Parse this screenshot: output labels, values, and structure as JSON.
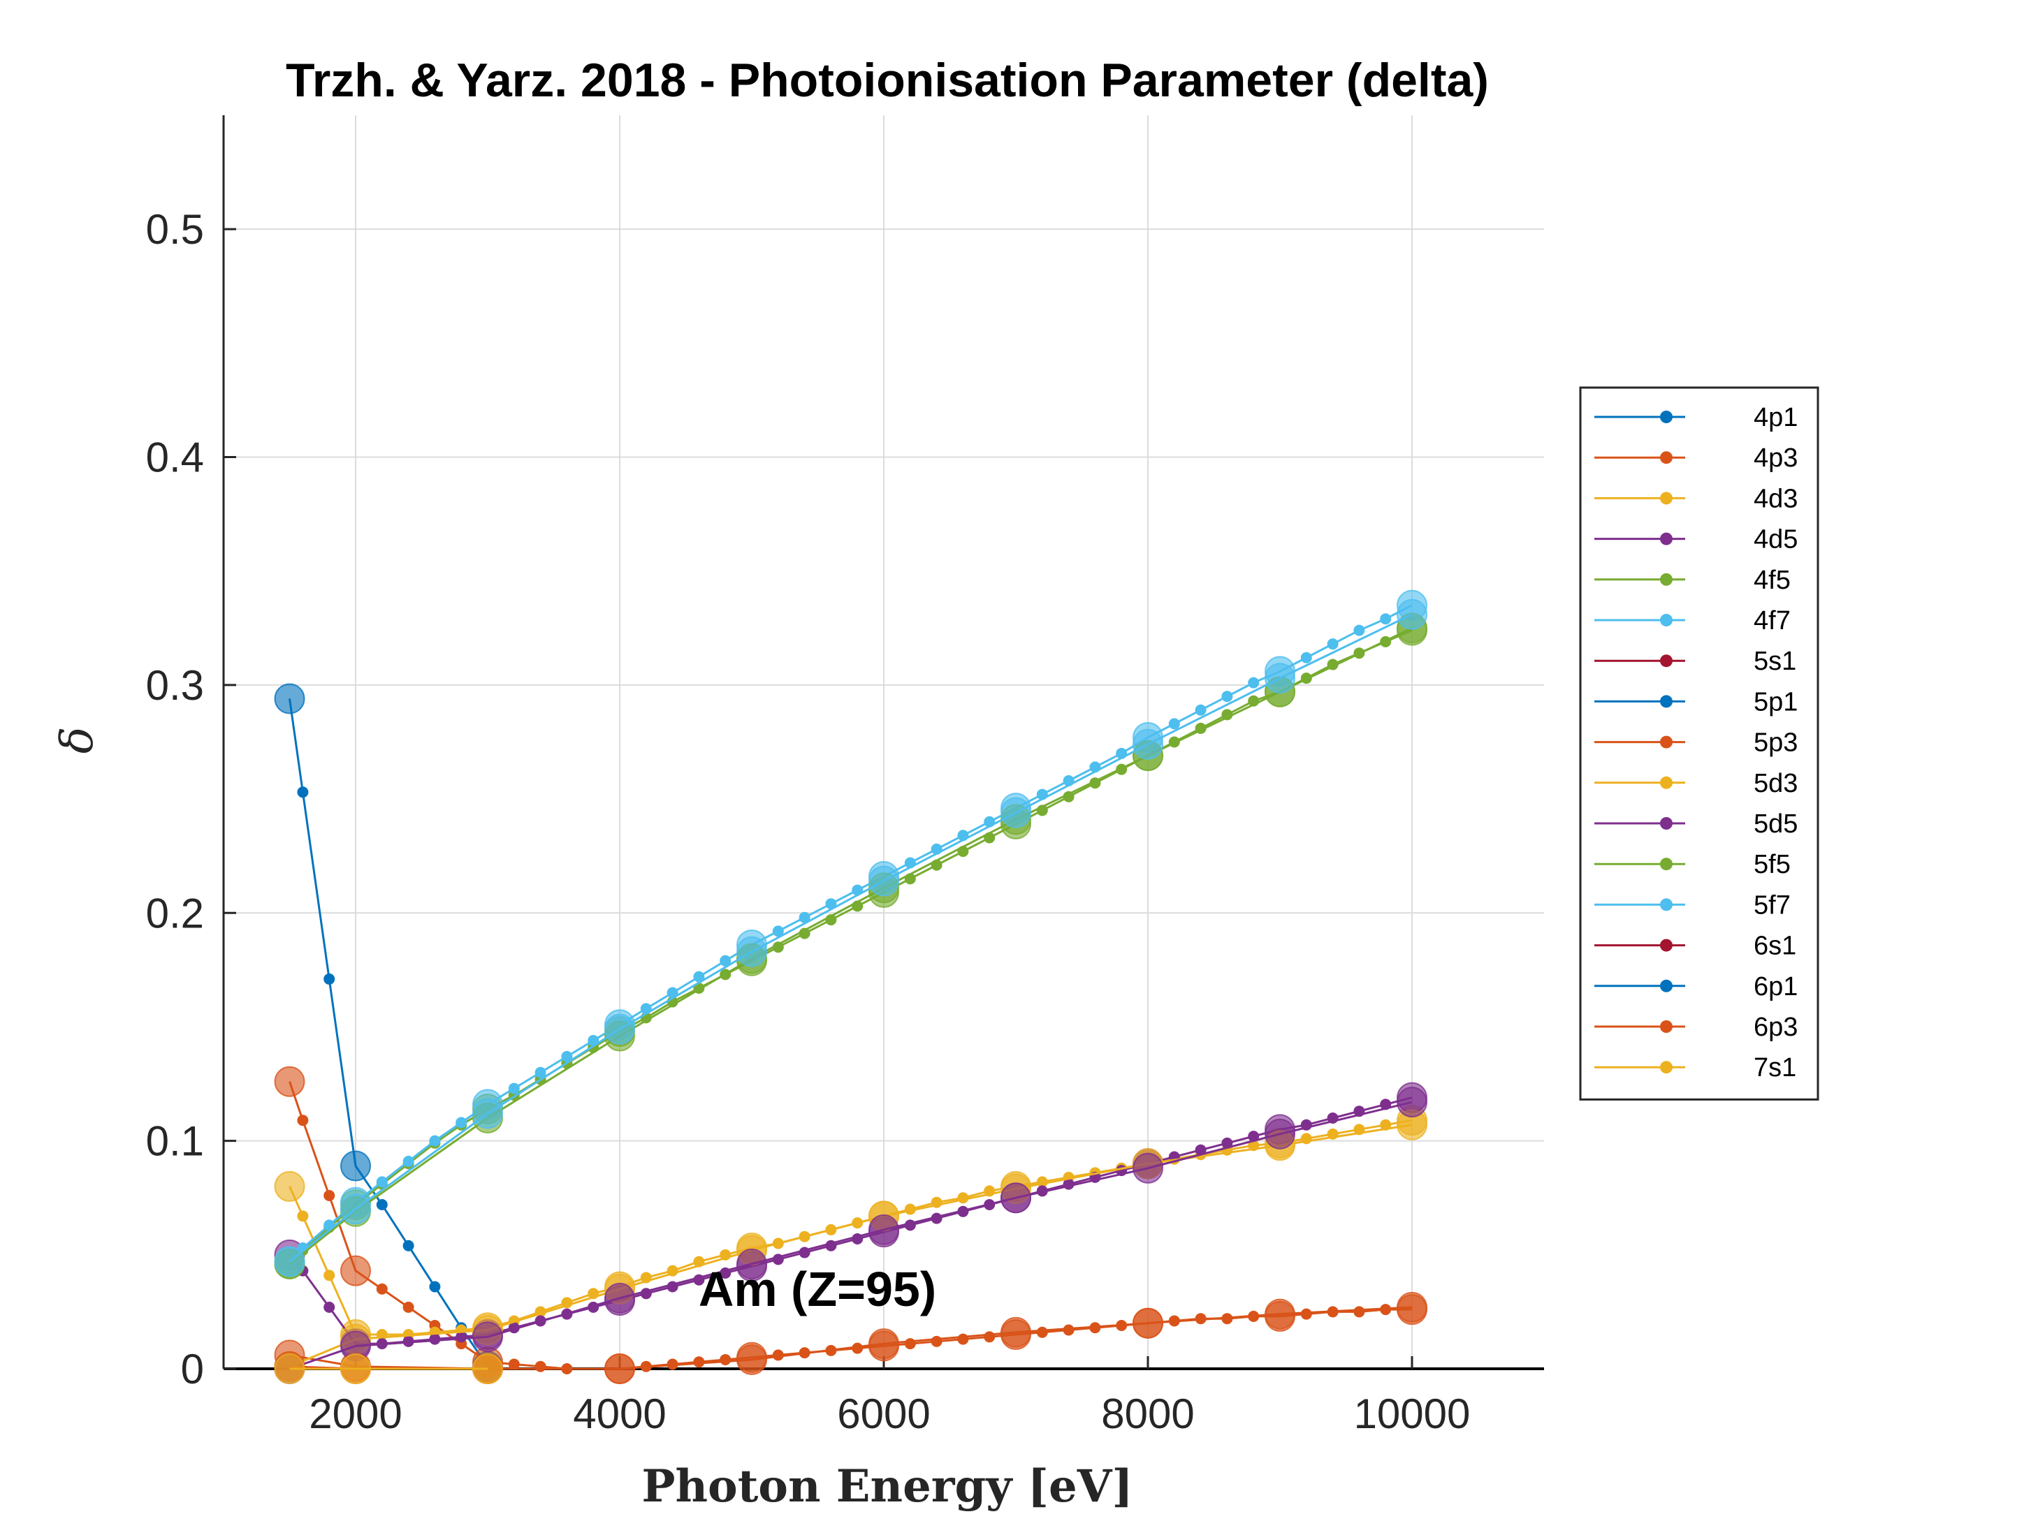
{
  "chart_data": {
    "type": "line",
    "title": "Trzh. & Yarz. 2018 - Photoionisation Parameter (delta)",
    "xlabel": "Photon Energy [eV]",
    "ylabel": "δ",
    "xlim": [
      1000,
      11000
    ],
    "ylim": [
      0,
      0.55
    ],
    "xticks": [
      2000,
      4000,
      6000,
      8000,
      10000
    ],
    "xtick_labels": [
      "2000",
      "4000",
      "6000",
      "8000",
      "10000"
    ],
    "yticks": [
      0,
      0.1,
      0.2,
      0.3,
      0.4,
      0.5
    ],
    "ytick_labels": [
      "0",
      "0.1",
      "0.2",
      "0.3",
      "0.4",
      "0.5"
    ],
    "grid": true,
    "legend_position": "outside-right",
    "annotation": "Am (Z=95)",
    "series": [
      {
        "name": "4p1",
        "color": "#0072BD",
        "x": [
          1500,
          1600,
          1800,
          2000,
          2200,
          2400,
          2600,
          2800,
          3000
        ],
        "y": [
          0.294,
          0.253,
          0.171,
          0.089,
          0.072,
          0.054,
          0.036,
          0.018,
          0.001
        ]
      },
      {
        "name": "4p3",
        "color": "#D95319",
        "x": [
          1500,
          1600,
          1800,
          2000,
          2200,
          2400,
          2600,
          2800,
          3000,
          3200,
          3400,
          3600
        ],
        "y": [
          0.126,
          0.109,
          0.076,
          0.043,
          0.035,
          0.027,
          0.019,
          0.011,
          0.003,
          0.002,
          0.001,
          0.0
        ]
      },
      {
        "name": "4d3",
        "color": "#EDB120",
        "x": [
          1500,
          1600,
          1800,
          2000,
          2200,
          2400,
          2600,
          2800,
          3000,
          3200,
          3400,
          3600,
          3800,
          4000,
          4200,
          4400,
          4600,
          4800,
          5000,
          5200,
          5400,
          5600,
          5800,
          6000,
          6200,
          6400,
          6600,
          6800,
          7000,
          7200,
          7400,
          7600,
          7800,
          8000,
          8200,
          8400,
          8600,
          8800,
          9000,
          9200,
          9400,
          9600,
          9800,
          10000
        ],
        "y": [
          0.08,
          0.067,
          0.041,
          0.015,
          0.015,
          0.015,
          0.016,
          0.017,
          0.018,
          0.021,
          0.025,
          0.029,
          0.033,
          0.036,
          0.04,
          0.043,
          0.047,
          0.05,
          0.053,
          0.055,
          0.058,
          0.061,
          0.064,
          0.067,
          0.07,
          0.073,
          0.075,
          0.078,
          0.08,
          0.082,
          0.084,
          0.086,
          0.088,
          0.09,
          0.092,
          0.094,
          0.096,
          0.098,
          0.099,
          0.101,
          0.103,
          0.105,
          0.107,
          0.109
        ]
      },
      {
        "name": "4d5",
        "color": "#7E2F8E",
        "x": [
          1500,
          1600,
          1800,
          2000,
          2200,
          2400,
          2600,
          2800,
          3000,
          3200,
          3400,
          3600,
          3800,
          4000,
          4200,
          4400,
          4600,
          4800,
          5000,
          5200,
          5400,
          5600,
          5800,
          6000,
          6200,
          6400,
          6600,
          6800,
          7000,
          7200,
          7400,
          7600,
          7800,
          8000,
          8200,
          8400,
          8600,
          8800,
          9000,
          9200,
          9400,
          9600,
          9800,
          10000
        ],
        "y": [
          0.05,
          0.043,
          0.027,
          0.011,
          0.011,
          0.012,
          0.013,
          0.014,
          0.015,
          0.018,
          0.021,
          0.024,
          0.027,
          0.03,
          0.033,
          0.036,
          0.039,
          0.042,
          0.045,
          0.048,
          0.051,
          0.054,
          0.057,
          0.06,
          0.063,
          0.066,
          0.069,
          0.072,
          0.075,
          0.078,
          0.081,
          0.084,
          0.087,
          0.09,
          0.093,
          0.096,
          0.099,
          0.102,
          0.105,
          0.107,
          0.11,
          0.113,
          0.116,
          0.119
        ]
      },
      {
        "name": "4f5",
        "color": "#77AC30",
        "x": [
          1500,
          1600,
          1800,
          2000,
          2200,
          2400,
          2600,
          2800,
          3000,
          3200,
          3400,
          3600,
          3800,
          4000,
          4200,
          4400,
          4600,
          4800,
          5000,
          5200,
          5400,
          5600,
          5800,
          6000,
          6200,
          6400,
          6600,
          6800,
          7000,
          7200,
          7400,
          7600,
          7800,
          8000,
          8200,
          8400,
          8600,
          8800,
          9000,
          9200,
          9400,
          9600,
          9800,
          10000
        ],
        "y": [
          0.046,
          0.052,
          0.062,
          0.072,
          0.081,
          0.09,
          0.099,
          0.107,
          0.114,
          0.12,
          0.127,
          0.134,
          0.141,
          0.148,
          0.154,
          0.161,
          0.167,
          0.173,
          0.179,
          0.185,
          0.191,
          0.197,
          0.203,
          0.209,
          0.215,
          0.221,
          0.227,
          0.233,
          0.239,
          0.245,
          0.251,
          0.257,
          0.263,
          0.269,
          0.275,
          0.281,
          0.287,
          0.293,
          0.297,
          0.303,
          0.309,
          0.314,
          0.319,
          0.324
        ]
      },
      {
        "name": "4f7",
        "color": "#4DBEEE",
        "x": [
          1500,
          1600,
          1800,
          2000,
          2200,
          2400,
          2600,
          2800,
          3000,
          3200,
          3400,
          3600,
          3800,
          4000,
          4200,
          4400,
          4600,
          4800,
          5000,
          5200,
          5400,
          5600,
          5800,
          6000,
          6200,
          6400,
          6600,
          6800,
          7000,
          7200,
          7400,
          7600,
          7800,
          8000,
          8200,
          8400,
          8600,
          8800,
          9000,
          9200,
          9400,
          9600,
          9800,
          10000
        ],
        "y": [
          0.047,
          0.053,
          0.063,
          0.073,
          0.082,
          0.091,
          0.1,
          0.108,
          0.116,
          0.123,
          0.13,
          0.137,
          0.144,
          0.151,
          0.158,
          0.165,
          0.172,
          0.179,
          0.186,
          0.192,
          0.198,
          0.204,
          0.21,
          0.216,
          0.222,
          0.228,
          0.234,
          0.24,
          0.246,
          0.252,
          0.258,
          0.264,
          0.27,
          0.277,
          0.283,
          0.289,
          0.295,
          0.301,
          0.306,
          0.312,
          0.318,
          0.324,
          0.329,
          0.335
        ]
      },
      {
        "name": "5s1",
        "color": "#A2142F",
        "x": [],
        "y": []
      },
      {
        "name": "5p1",
        "color": "#0072BD",
        "x": [],
        "y": []
      },
      {
        "name": "5p3",
        "color": "#D95319",
        "x": [
          1500,
          2000,
          3000,
          4000,
          4200,
          4400,
          4600,
          4800,
          5000,
          5200,
          5400,
          5600,
          5800,
          6000,
          6200,
          6400,
          6600,
          6800,
          7000,
          7200,
          7400,
          7600,
          7800,
          8000,
          8200,
          8400,
          8600,
          8800,
          9000,
          9200,
          9400,
          9600,
          9800,
          10000
        ],
        "y": [
          0.006,
          0.001,
          0.0,
          0.0,
          0.001,
          0.002,
          0.003,
          0.004,
          0.005,
          0.006,
          0.007,
          0.008,
          0.009,
          0.01,
          0.011,
          0.012,
          0.013,
          0.014,
          0.015,
          0.016,
          0.017,
          0.018,
          0.019,
          0.02,
          0.021,
          0.022,
          0.022,
          0.023,
          0.023,
          0.024,
          0.025,
          0.025,
          0.026,
          0.026
        ]
      },
      {
        "name": "5d3",
        "color": "#EDB120",
        "x": [
          1500,
          2000,
          3000,
          4000,
          5000,
          6000,
          7000,
          8000,
          9000,
          10000
        ],
        "y": [
          0.001,
          0.013,
          0.017,
          0.035,
          0.052,
          0.067,
          0.079,
          0.09,
          0.098,
          0.107
        ]
      },
      {
        "name": "5d5",
        "color": "#7E2F8E",
        "x": [
          1500,
          2000,
          3000,
          4000,
          5000,
          6000,
          7000,
          8000,
          9000,
          10000
        ],
        "y": [
          0.0,
          0.01,
          0.014,
          0.031,
          0.046,
          0.061,
          0.075,
          0.088,
          0.103,
          0.117
        ]
      },
      {
        "name": "5f5",
        "color": "#77AC30",
        "x": [
          1500,
          2000,
          3000,
          4000,
          5000,
          6000,
          7000,
          8000,
          9000,
          10000
        ],
        "y": [
          0.046,
          0.069,
          0.11,
          0.146,
          0.18,
          0.211,
          0.241,
          0.269,
          0.297,
          0.325
        ]
      },
      {
        "name": "5f7",
        "color": "#4DBEEE",
        "x": [
          1500,
          2000,
          3000,
          4000,
          5000,
          6000,
          7000,
          8000,
          9000,
          10000
        ],
        "y": [
          0.047,
          0.07,
          0.112,
          0.149,
          0.183,
          0.214,
          0.244,
          0.274,
          0.303,
          0.331
        ]
      },
      {
        "name": "6s1",
        "color": "#A2142F",
        "x": [],
        "y": []
      },
      {
        "name": "6p1",
        "color": "#0072BD",
        "x": [],
        "y": []
      },
      {
        "name": "6p3",
        "color": "#D95319",
        "x": [
          1500,
          2000,
          3000,
          4000,
          5000,
          6000,
          7000,
          8000,
          9000,
          10000
        ],
        "y": [
          0.001,
          0.0,
          0.0,
          0.0,
          0.004,
          0.011,
          0.016,
          0.02,
          0.024,
          0.027
        ]
      },
      {
        "name": "7s1",
        "color": "#EDB120",
        "x": [
          1500,
          2000,
          3000
        ],
        "y": [
          0.0,
          0.0,
          0.0
        ]
      }
    ]
  }
}
